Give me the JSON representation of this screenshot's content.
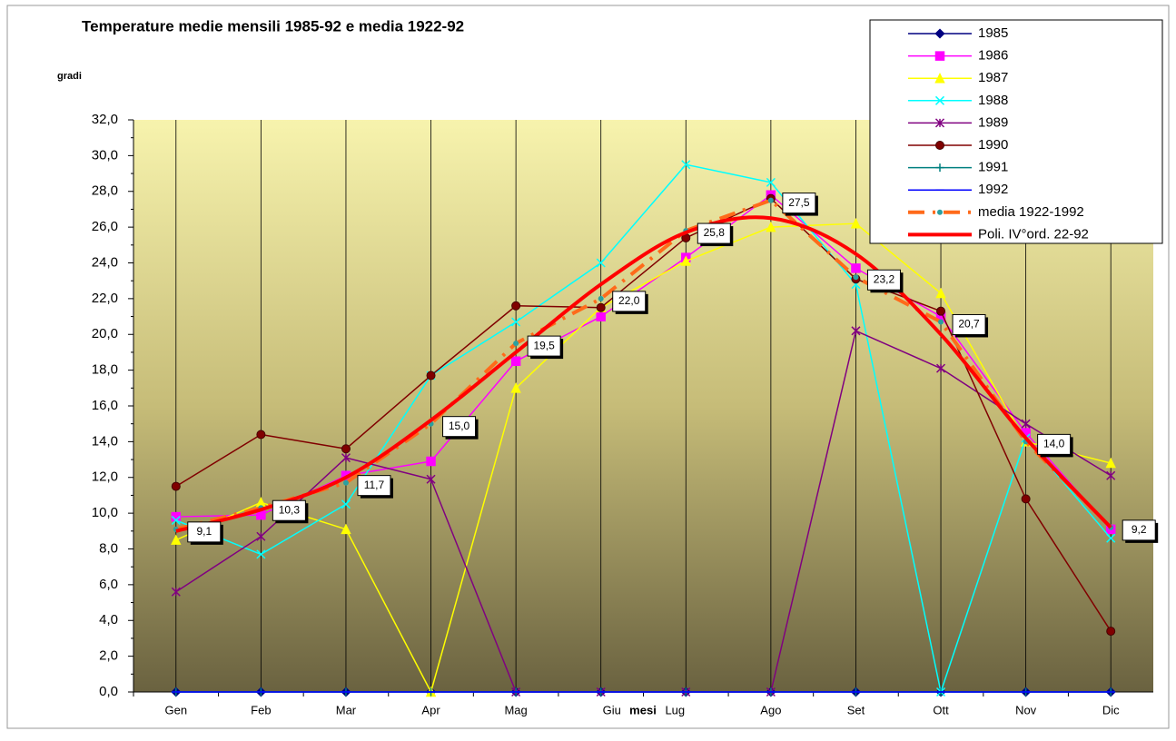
{
  "chart_data": {
    "type": "line",
    "title": "Temperature medie mensili 1985-92 e media 1922-92",
    "y_label": "gradi",
    "x_label": "mesi",
    "categories": [
      "Gen",
      "Feb",
      "Mar",
      "Apr",
      "Mag",
      "Giu",
      "Lug",
      "Ago",
      "Set",
      "Ott",
      "Nov",
      "Dic"
    ],
    "ylim": [
      0,
      32
    ],
    "yticks": [
      {
        "value": 0,
        "label": "0,0"
      },
      {
        "value": 2,
        "label": "2,0"
      },
      {
        "value": 4,
        "label": "4,0"
      },
      {
        "value": 6,
        "label": "6,0"
      },
      {
        "value": 8,
        "label": "8,0"
      },
      {
        "value": 10,
        "label": "10,0"
      },
      {
        "value": 12,
        "label": "12,0"
      },
      {
        "value": 14,
        "label": "14,0"
      },
      {
        "value": 16,
        "label": "16,0"
      },
      {
        "value": 18,
        "label": "18,0"
      },
      {
        "value": 20,
        "label": "20,0"
      },
      {
        "value": 22,
        "label": "22,0"
      },
      {
        "value": 24,
        "label": "24,0"
      },
      {
        "value": 26,
        "label": "26,0"
      },
      {
        "value": 28,
        "label": "28,0"
      },
      {
        "value": 30,
        "label": "30,0"
      },
      {
        "value": 32,
        "label": "32,0"
      }
    ],
    "legend": "upper right",
    "series": [
      {
        "name": "1985",
        "color": "#000080",
        "marker": "diamond",
        "values": [
          0,
          0,
          0,
          0,
          0,
          0,
          0,
          0,
          0,
          0,
          0,
          0
        ]
      },
      {
        "name": "1986",
        "color": "#ff00ff",
        "marker": "square",
        "values": [
          9.8,
          9.9,
          12.1,
          12.9,
          18.5,
          21.0,
          24.3,
          27.8,
          23.7,
          21.0,
          14.5,
          9.1
        ]
      },
      {
        "name": "1987",
        "color": "#ffff00",
        "marker": "triangle",
        "values": [
          8.5,
          10.6,
          9.1,
          0,
          17.0,
          21.5,
          24.1,
          26.0,
          26.2,
          22.3,
          14.0,
          12.8
        ]
      },
      {
        "name": "1988",
        "color": "#00ffff",
        "marker": "x",
        "values": [
          9.6,
          7.7,
          10.5,
          17.7,
          20.7,
          24.0,
          29.5,
          28.5,
          22.8,
          0,
          14.2,
          8.6
        ]
      },
      {
        "name": "1989",
        "color": "#800080",
        "marker": "star",
        "values": [
          5.6,
          8.7,
          13.1,
          11.9,
          0,
          0,
          0,
          0,
          20.2,
          18.1,
          15.0,
          12.1
        ]
      },
      {
        "name": "1990",
        "color": "#800000",
        "marker": "circle",
        "values": [
          11.5,
          14.4,
          13.6,
          17.7,
          21.6,
          21.5,
          25.4,
          27.6,
          23.1,
          21.3,
          10.8,
          3.4
        ]
      },
      {
        "name": "1991",
        "color": "#008080",
        "marker": "plus",
        "values": [
          0,
          0,
          0,
          0,
          0,
          0,
          0,
          0,
          0,
          0,
          0,
          0
        ]
      },
      {
        "name": "1992",
        "color": "#0000ff",
        "marker": "dash",
        "values": [
          0,
          0,
          0,
          0,
          0,
          0,
          0,
          0,
          0,
          0,
          0,
          0
        ]
      },
      {
        "name": "media 1922-1992",
        "color": "#ff6a1a",
        "marker": "dot",
        "dashed": true,
        "values": [
          9.1,
          10.3,
          11.7,
          15.0,
          19.5,
          22.0,
          25.8,
          27.5,
          23.2,
          20.7,
          14.0,
          9.2
        ],
        "value_labels": [
          "9,1",
          "10,3",
          "11,7",
          "15,0",
          "19,5",
          "22,0",
          "25,8",
          "27,5",
          "23,2",
          "20,7",
          "14,0",
          "9,2"
        ]
      },
      {
        "name": "Poli. IV°ord. 22-92",
        "color": "#ff0000",
        "smooth": true,
        "values": [
          9.0,
          10.2,
          12.0,
          15.2,
          19.0,
          22.8,
          25.7,
          26.5,
          24.5,
          20.0,
          14.2,
          9.2
        ]
      }
    ]
  }
}
